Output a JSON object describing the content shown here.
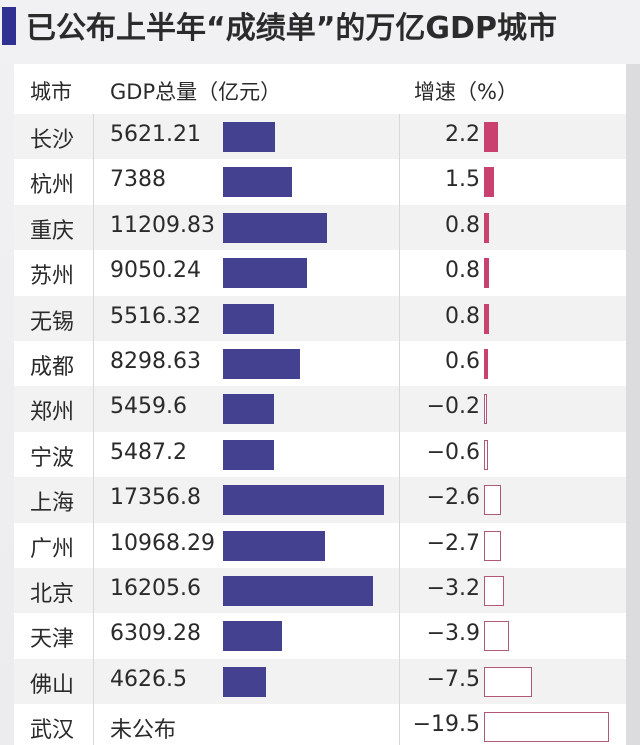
{
  "title": "已公布上半年“成绩单”的万亿GDP城市",
  "colors": {
    "accent": "#2e3192",
    "gdp_bar": "#434190",
    "growth_positive": "#c9416e",
    "growth_negative_border": "#b35779"
  },
  "table": {
    "headers": {
      "city": "城市",
      "gdp": "GDP总量（亿元）",
      "growth": "增速（%）"
    },
    "rows": [
      {
        "city": "长沙",
        "gdp": "5621.21",
        "growth": "2.2"
      },
      {
        "city": "杭州",
        "gdp": "7388",
        "growth": "1.5"
      },
      {
        "city": "重庆",
        "gdp": "11209.83",
        "growth": "0.8"
      },
      {
        "city": "苏州",
        "gdp": "9050.24",
        "growth": "0.8"
      },
      {
        "city": "无锡",
        "gdp": "5516.32",
        "growth": "0.8"
      },
      {
        "city": "成都",
        "gdp": "8298.63",
        "growth": "0.6"
      },
      {
        "city": "郑州",
        "gdp": "5459.6",
        "growth": "−0.2"
      },
      {
        "city": "宁波",
        "gdp": "5487.2",
        "growth": "−0.6"
      },
      {
        "city": "上海",
        "gdp": "17356.8",
        "growth": "−2.6"
      },
      {
        "city": "广州",
        "gdp": "10968.29",
        "growth": "−2.7"
      },
      {
        "city": "北京",
        "gdp": "16205.6",
        "growth": "−3.2"
      },
      {
        "city": "天津",
        "gdp": "6309.28",
        "growth": "−3.9"
      },
      {
        "city": "佛山",
        "gdp": "4626.5",
        "growth": "−7.5"
      },
      {
        "city": "武汉",
        "gdp": "未公布",
        "growth": "−19.5"
      }
    ]
  },
  "chart_data": {
    "type": "table",
    "title": "已公布上半年“成绩单”的万亿GDP城市",
    "columns": [
      "城市",
      "GDP总量（亿元）",
      "增速（%）"
    ],
    "categories": [
      "长沙",
      "杭州",
      "重庆",
      "苏州",
      "无锡",
      "成都",
      "郑州",
      "宁波",
      "上海",
      "广州",
      "北京",
      "天津",
      "佛山",
      "武汉"
    ],
    "series": [
      {
        "name": "GDP总量（亿元）",
        "type": "bar",
        "values": [
          5621.21,
          7388,
          11209.83,
          9050.24,
          5516.32,
          8298.63,
          5459.6,
          5487.2,
          17356.8,
          10968.29,
          16205.6,
          6309.28,
          4626.5,
          null
        ]
      },
      {
        "name": "增速（%）",
        "type": "bar",
        "values": [
          2.2,
          1.5,
          0.8,
          0.8,
          0.8,
          0.6,
          -0.2,
          -0.6,
          -2.6,
          -2.7,
          -3.2,
          -3.9,
          -7.5,
          -19.5
        ]
      }
    ],
    "annotations": [
      "武汉 GDP 未公布"
    ],
    "grid": false
  }
}
